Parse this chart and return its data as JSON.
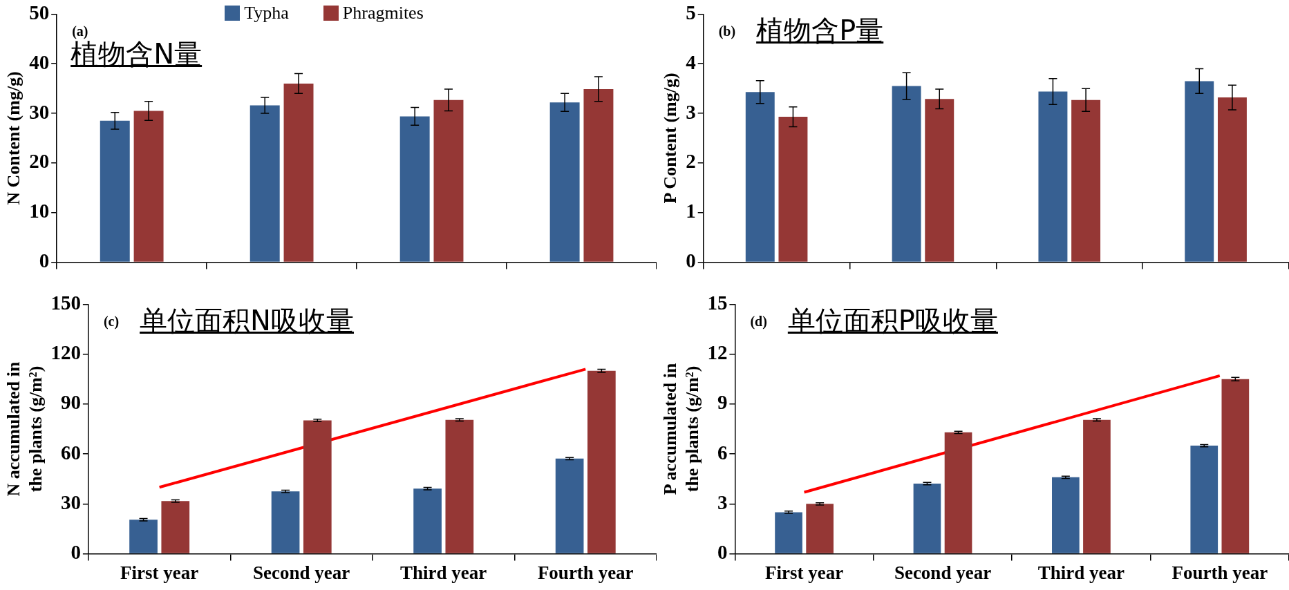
{
  "chart_data": [
    {
      "type": "bar",
      "title": "植物含N量",
      "ylabel": "N Content (mg/g)",
      "annotations": [
        "(a)"
      ],
      "legend": "top",
      "tick_labels": "y",
      "categories": [
        "First year",
        "Second year",
        "Third year",
        "Fourth year"
      ],
      "ylim": [
        0,
        50
      ],
      "yticks": [
        0,
        10,
        20,
        30,
        40,
        50
      ],
      "series": [
        {
          "name": "Typha",
          "color": "#376092",
          "values": [
            28.5,
            31.6,
            29.4,
            32.2
          ],
          "errors": [
            1.7,
            1.6,
            1.8,
            1.8
          ]
        },
        {
          "name": "Phragmites",
          "color": "#953735",
          "values": [
            30.5,
            36.0,
            32.7,
            34.9
          ],
          "errors": [
            1.9,
            2.0,
            2.2,
            2.5
          ]
        }
      ]
    },
    {
      "type": "bar",
      "title": "植物含P量",
      "ylabel": "P Content (mg/g)",
      "annotations": [
        "(b)"
      ],
      "tick_labels": "y",
      "categories": [
        "First year",
        "Second year",
        "Third year",
        "Fourth year"
      ],
      "ylim": [
        0,
        5
      ],
      "yticks": [
        0,
        1,
        2,
        3,
        4,
        5
      ],
      "series": [
        {
          "color": "#376092",
          "values": [
            3.43,
            3.55,
            3.44,
            3.65
          ],
          "errors": [
            0.23,
            0.27,
            0.26,
            0.25
          ]
        },
        {
          "color": "#953735",
          "values": [
            2.93,
            3.29,
            3.27,
            3.32
          ],
          "errors": [
            0.2,
            0.2,
            0.23,
            0.25
          ]
        }
      ]
    },
    {
      "type": "bar",
      "title": "单位面积N吸收量",
      "ylabel": "N accumulated in the plants (g/m²)",
      "annotations": [
        "(c)"
      ],
      "categories": [
        "First year",
        "Second year",
        "Third year",
        "Fourth year"
      ],
      "ylim": [
        0,
        150
      ],
      "yticks": [
        0,
        30,
        60,
        90,
        120,
        150
      ],
      "series": [
        {
          "color": "#376092",
          "values": [
            20.5,
            37.5,
            39.2,
            57.2
          ],
          "errors": [
            0.7,
            0.7,
            0.7,
            0.7
          ]
        },
        {
          "color": "#953735",
          "values": [
            31.7,
            80.2,
            80.5,
            110
          ],
          "errors": [
            0.7,
            0.7,
            0.7,
            0.9
          ]
        },
        {
          "type": "line",
          "color": "#ff0000",
          "x": [
            "First year",
            "Fourth year"
          ],
          "values": [
            40,
            111
          ]
        }
      ]
    },
    {
      "type": "bar",
      "title": "单位面积P吸收量",
      "ylabel": "P accumulated in the plants (g/m²)",
      "annotations": [
        "(d)"
      ],
      "categories": [
        "First year",
        "Second year",
        "Third year",
        "Fourth year"
      ],
      "ylim": [
        0,
        15
      ],
      "yticks": [
        0,
        3,
        6,
        9,
        12,
        15
      ],
      "series": [
        {
          "color": "#376092",
          "values": [
            2.5,
            4.22,
            4.6,
            6.5
          ],
          "errors": [
            0.07,
            0.07,
            0.07,
            0.07
          ]
        },
        {
          "color": "#953735",
          "values": [
            3.0,
            7.3,
            8.05,
            10.5
          ],
          "errors": [
            0.07,
            0.07,
            0.07,
            0.1
          ]
        },
        {
          "type": "line",
          "color": "#ff0000",
          "x": [
            "First year",
            "Fourth year"
          ],
          "values": [
            3.7,
            10.7
          ]
        }
      ]
    }
  ]
}
